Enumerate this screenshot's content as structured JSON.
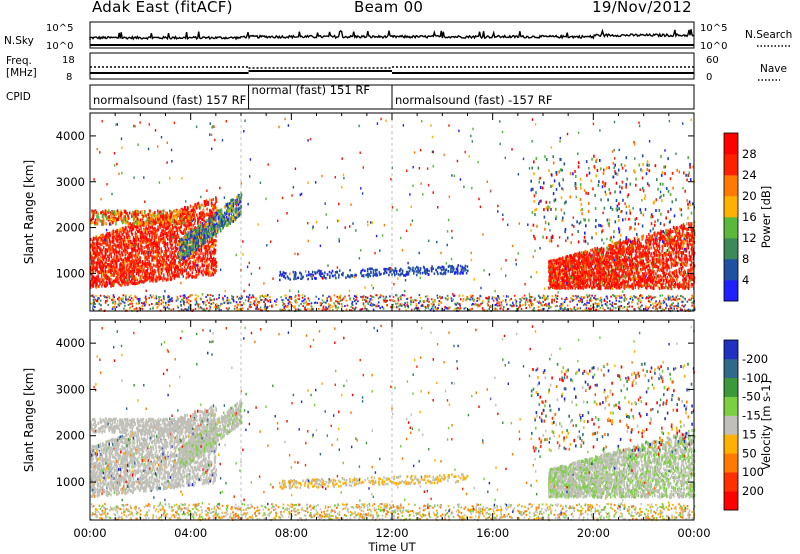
{
  "header": {
    "title": "Adak East (fitACF)",
    "beam": "Beam 00",
    "date": "19/Nov/2012"
  },
  "sidebar_labels": {
    "nsky": "N.Sky",
    "nsky_tick_top": "10^5",
    "nsky_tick_bottom": "10^0",
    "nsearch": "N.Search",
    "nsearch_tick_top": "10^5",
    "nsearch_tick_bottom": "10^0",
    "freq_line1": "Freq.",
    "freq_line2": "[MHz]",
    "freq_tick_top": "18",
    "freq_tick_bottom": "8",
    "nave": "Nave",
    "nave_tick_top": "60",
    "nave_tick_bottom": "0",
    "cpid": "CPID"
  },
  "cpid_segments": [
    {
      "label": "normalsound (fast) 157 RF",
      "start_hour": 0,
      "end_hour": 6.3
    },
    {
      "label": "normal (fast) 151 RF",
      "start_hour": 6.3,
      "end_hour": 12
    },
    {
      "label": "normalsound (fast) -157 RF",
      "start_hour": 12,
      "end_hour": 24
    }
  ],
  "chart_data": [
    {
      "type": "heatmap",
      "panel": "power",
      "ylabel": "Slant Range [km]",
      "xlim": [
        0,
        24
      ],
      "ylim": [
        180,
        4500
      ],
      "yticks": [
        "1000",
        "2000",
        "3000",
        "4000"
      ],
      "xticks": [
        "00:00",
        "04:00",
        "08:00",
        "12:00",
        "16:00",
        "20:00",
        "00:00"
      ],
      "colorbar": {
        "label": "Power [dB]",
        "levels": [
          "4",
          "8",
          "12",
          "16",
          "20",
          "24",
          "28"
        ],
        "colors": [
          "#2020ff",
          "#2050a0",
          "#3a8a5a",
          "#5ab83a",
          "#ffb000",
          "#ff7a00",
          "#ff2000",
          "#ff0000"
        ]
      }
    },
    {
      "type": "heatmap",
      "panel": "velocity",
      "ylabel": "Slant Range [km]",
      "xlabel": "Time UT",
      "xlim": [
        0,
        24
      ],
      "ylim": [
        180,
        4500
      ],
      "yticks": [
        "1000",
        "2000",
        "3000",
        "4000"
      ],
      "xticks": [
        "00:00",
        "04:00",
        "08:00",
        "12:00",
        "16:00",
        "20:00",
        "00:00"
      ],
      "colorbar": {
        "label": "Velocity [m s-1]",
        "levels": [
          "200",
          "100",
          "50",
          "15",
          "-15",
          "-50",
          "-100",
          "-200"
        ],
        "colors": [
          "#2030c0",
          "#2f6a8a",
          "#3a9a3a",
          "#7ad040",
          "#c0c0b8",
          "#ffb000",
          "#ff7a00",
          "#ff3000",
          "#ff0000"
        ]
      }
    }
  ],
  "colors": {
    "background": "#ffffff",
    "axis": "#000000",
    "gray_scatter": "#c0c0b8"
  }
}
